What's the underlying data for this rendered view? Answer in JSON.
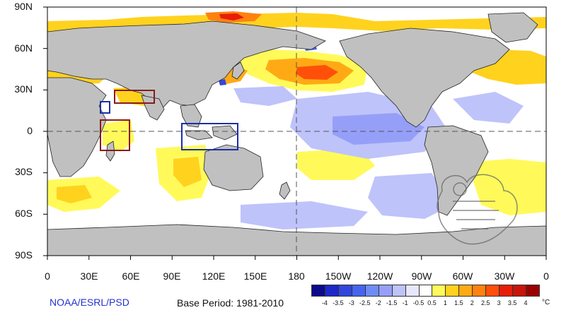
{
  "map": {
    "lat_labels": [
      "90N",
      "60N",
      "30N",
      "0",
      "30S",
      "60S",
      "90S"
    ],
    "lon_labels": [
      "0",
      "30E",
      "60E",
      "90E",
      "120E",
      "150E",
      "180",
      "150W",
      "120W",
      "90W",
      "60W",
      "30W",
      "0"
    ],
    "ocean_color": "#ffffff",
    "land_color": "#c0c0c0"
  },
  "footer": {
    "source": "NOAA/ESRL/PSD",
    "base_period": "Base Period: 1981-2010"
  },
  "legend": {
    "unit": "°C",
    "tick_labels": [
      "-4",
      "-3.5",
      "-3",
      "-2.5",
      "-2",
      "-1.5",
      "-1",
      "-0.5",
      "0.5",
      "1",
      "1.5",
      "2",
      "2.5",
      "3",
      "3.5",
      "4"
    ],
    "colors": [
      "#0a0a8c",
      "#1e28c8",
      "#3246dc",
      "#4664f0",
      "#6e8cf5",
      "#969ff8",
      "#bec3fa",
      "#e6e6fc",
      "#ffffff",
      "#fffa5a",
      "#ffd21e",
      "#ffaa14",
      "#ff820f",
      "#ff500a",
      "#e61e0a",
      "#c8140a",
      "#9b0000"
    ]
  },
  "highlight_boxes": [
    {
      "name": "red-box-arabian-sea",
      "color": "#8b1a1a"
    },
    {
      "name": "blue-box-red-sea",
      "color": "#1a2faa"
    },
    {
      "name": "red-box-western-indian-ocean",
      "color": "#8b1a1a"
    },
    {
      "name": "blue-box-maritime-continent",
      "color": "#1a2faa"
    }
  ]
}
